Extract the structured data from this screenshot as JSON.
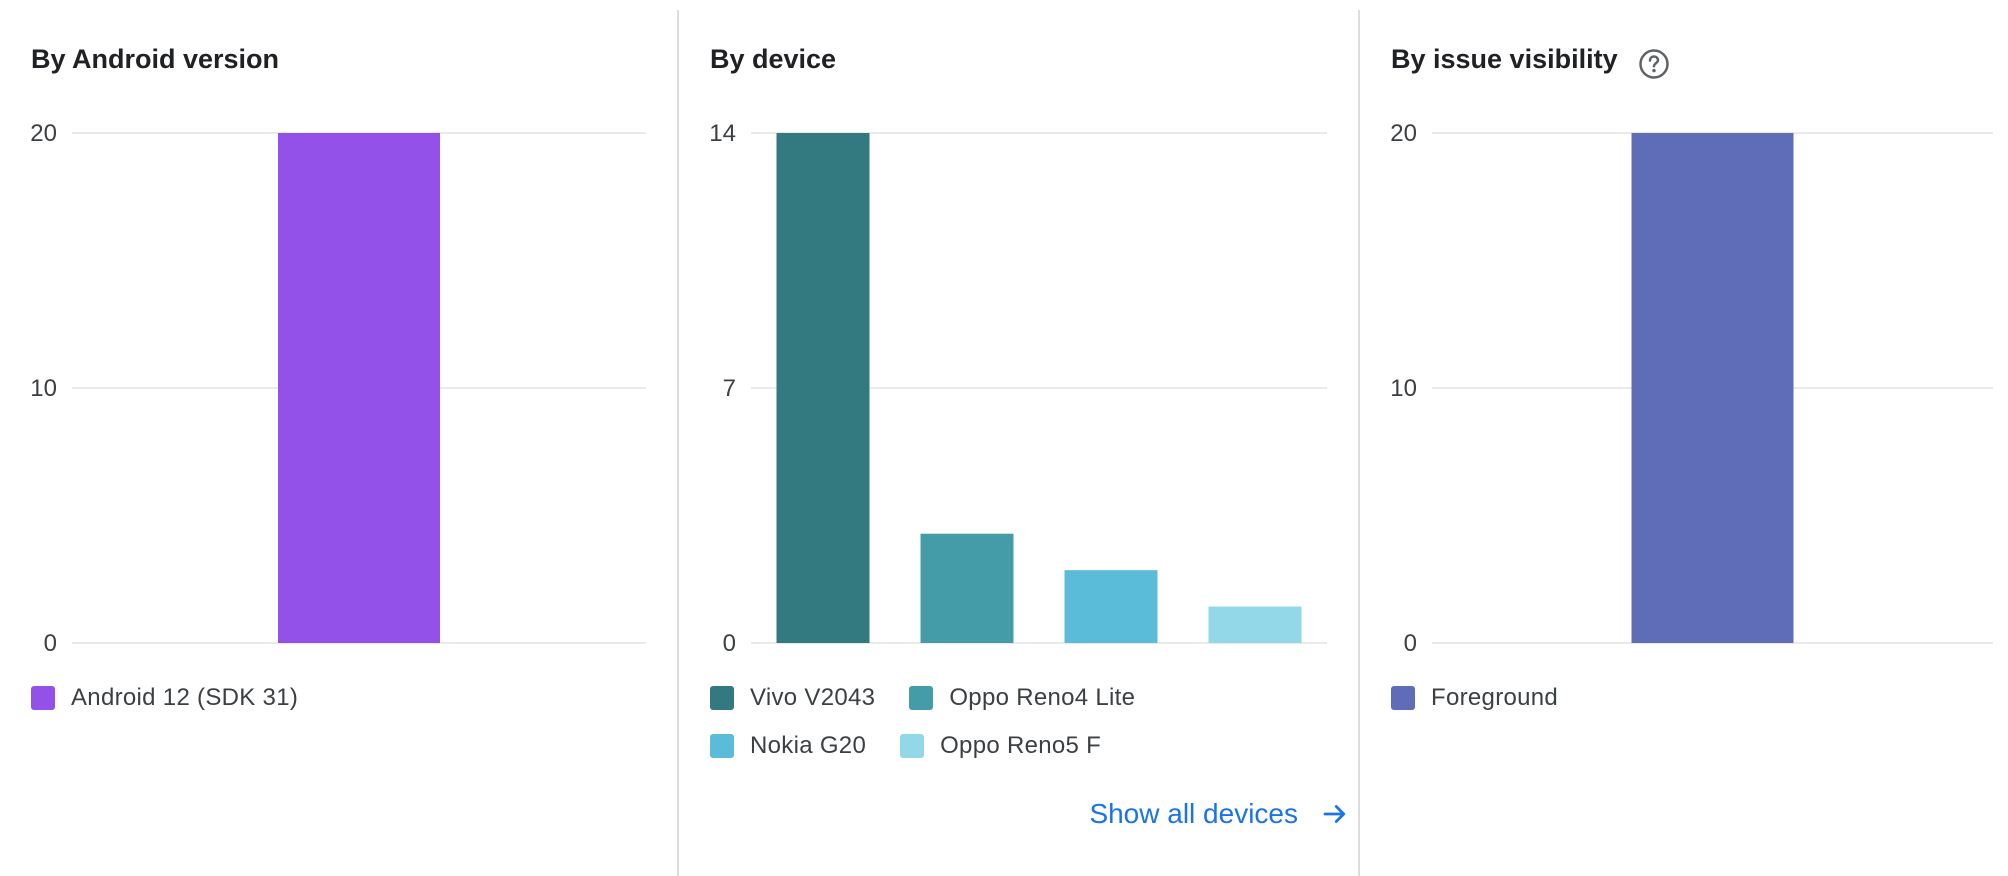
{
  "panels": [
    {
      "title": "By Android version",
      "help_icon": null,
      "chart_data": {
        "type": "bar",
        "categories": [
          "Android 12 (SDK 31)"
        ],
        "values": [
          20
        ],
        "ylim": [
          0,
          20
        ],
        "yticks": [
          "0",
          "10",
          "20"
        ],
        "grid": true,
        "legend": "bottom"
      },
      "colors": [
        "#9351ea"
      ],
      "legend": [
        [
          "Android 12 (SDK 31)"
        ]
      ]
    },
    {
      "title": "By device",
      "help_icon": null,
      "chart_data": {
        "type": "bar",
        "categories": [
          "Vivo V2043",
          "Oppo Reno4 Lite",
          "Nokia G20",
          "Oppo Reno5 F"
        ],
        "values": [
          14,
          3,
          2,
          1
        ],
        "ylim": [
          0,
          14
        ],
        "yticks": [
          "0",
          "7",
          "14"
        ],
        "grid": true,
        "legend": "bottom"
      },
      "colors": [
        "#327a80",
        "#449ca9",
        "#5bbcda",
        "#92d8e9"
      ],
      "legend": [
        [
          "Vivo V2043",
          "Oppo Reno4 Lite"
        ],
        [
          "Nokia G20",
          "Oppo Reno5 F"
        ]
      ],
      "link": {
        "label": "Show all devices",
        "icon": "arrow-right-icon"
      }
    },
    {
      "title": "By issue visibility",
      "help_icon": "help-circle-icon",
      "chart_data": {
        "type": "bar",
        "categories": [
          "Foreground"
        ],
        "values": [
          20
        ],
        "ylim": [
          0,
          20
        ],
        "yticks": [
          "0",
          "10",
          "20"
        ],
        "grid": true,
        "legend": "bottom"
      },
      "colors": [
        "#5f6db9"
      ],
      "legend": [
        [
          "Foreground"
        ]
      ]
    }
  ],
  "colors": {
    "gridline": "#e3e3e3",
    "link": "#1a73e8",
    "text": "#3c4043"
  }
}
